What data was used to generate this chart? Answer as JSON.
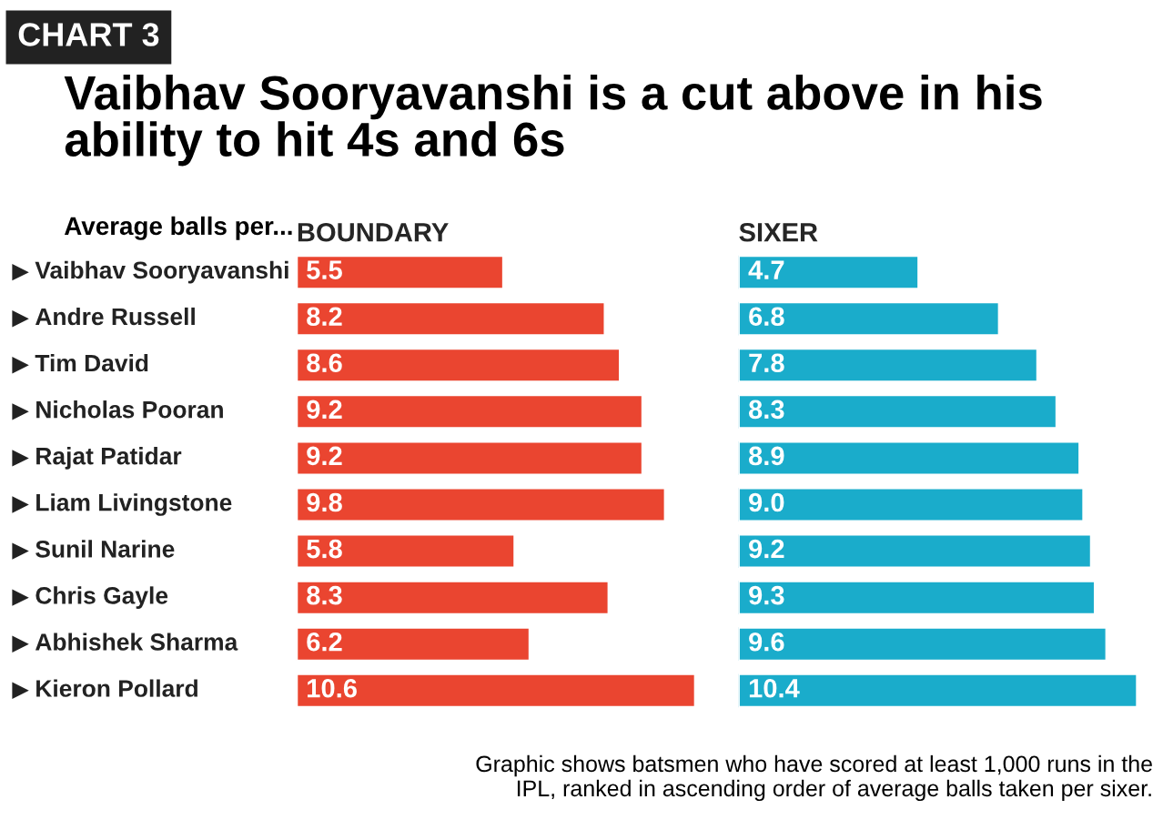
{
  "chart_data": [
    {
      "type": "bar",
      "orientation": "horizontal",
      "title": "BOUNDARY",
      "categories": [
        "Vaibhav Sooryavanshi",
        "Andre Russell",
        "Tim David",
        "Nicholas Pooran",
        "Rajat Patidar",
        "Liam Livingstone",
        "Sunil Narine",
        "Chris Gayle",
        "Abhishek Sharma",
        "Kieron Pollard"
      ],
      "values": [
        5.5,
        8.2,
        8.6,
        9.2,
        9.2,
        9.8,
        5.8,
        8.3,
        6.2,
        10.6
      ],
      "color": "#ea4530",
      "data_labels": true,
      "tick_labels": "y",
      "annotations": [
        "CHART 3",
        "Vaibhav Sooryavanshi is a cut above in his ability to hit 4s and 6s",
        "Average balls per...",
        "Graphic shows batsmen who have scored at least 1,000 runs in the IPL, ranked in ascending order of average balls taken per sixer."
      ]
    },
    {
      "type": "bar",
      "orientation": "horizontal",
      "title": "SIXER",
      "categories": [
        null,
        null,
        null,
        null,
        null,
        null,
        null,
        null,
        null,
        null
      ],
      "values": [
        4.7,
        6.8,
        7.8,
        8.3,
        8.9,
        9.0,
        9.2,
        9.3,
        9.6,
        10.4
      ],
      "value_labels": [
        "4.7",
        "6.8",
        "7.8",
        "8.3",
        "8.9",
        "9.0",
        "9.2",
        "9.3",
        "9.6",
        "10.4"
      ],
      "color": "#1aaccb",
      "tick_labels": false
    }
  ]
}
